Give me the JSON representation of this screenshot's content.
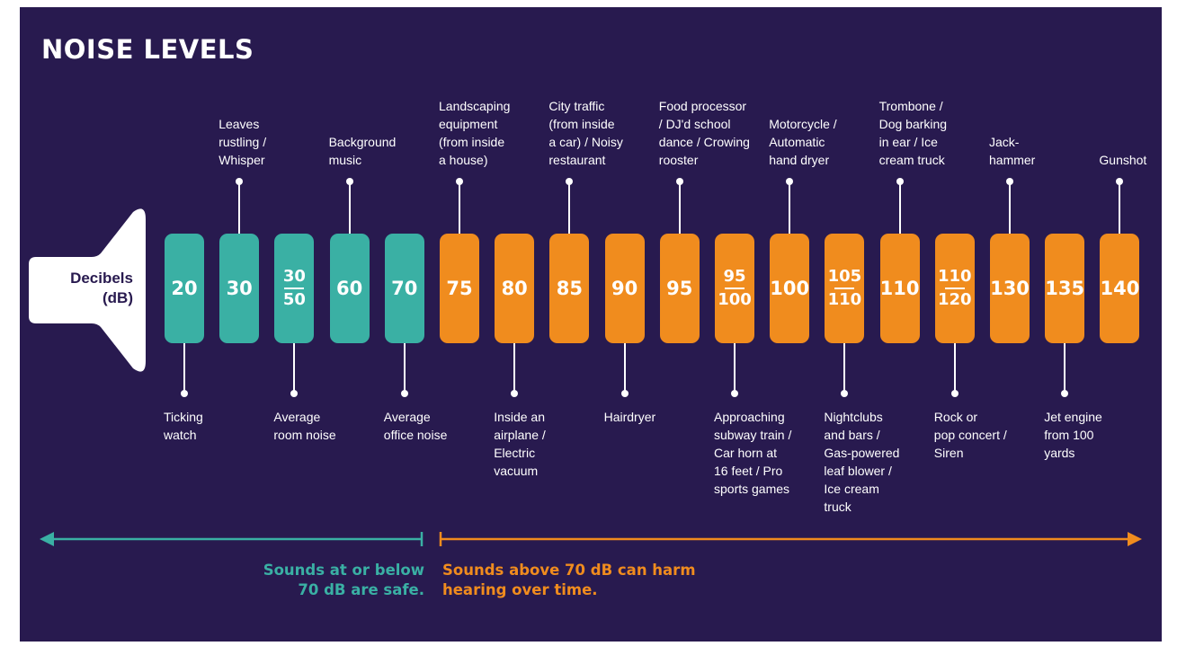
{
  "title": "NOISE LEVELS",
  "speaker": {
    "line1": "Decibels",
    "line2": "(dB)"
  },
  "colors": {
    "background": "#281a4f",
    "safe": "#3ab0a4",
    "harm": "#f08c1e",
    "text": "#ffffff"
  },
  "levels": [
    {
      "value": "20",
      "zone": "safe",
      "label_pos": "below",
      "label": "Ticking\nwatch"
    },
    {
      "value": "30",
      "zone": "safe",
      "label_pos": "above",
      "label": "Leaves\nrustling /\nWhisper"
    },
    {
      "value": "30",
      "value2": "50",
      "zone": "safe",
      "label_pos": "below",
      "label": "Average\nroom noise"
    },
    {
      "value": "60",
      "zone": "safe",
      "label_pos": "above",
      "label": "Background\nmusic"
    },
    {
      "value": "70",
      "zone": "safe",
      "label_pos": "below",
      "label": "Average\noffice noise"
    },
    {
      "value": "75",
      "zone": "harm",
      "label_pos": "above",
      "label": "Landscaping\nequipment\n(from inside\na house)"
    },
    {
      "value": "80",
      "zone": "harm",
      "label_pos": "below",
      "label": "Inside an\nairplane /\nElectric\nvacuum"
    },
    {
      "value": "85",
      "zone": "harm",
      "label_pos": "above",
      "label": "City traffic\n(from inside\na car) / Noisy\nrestaurant"
    },
    {
      "value": "90",
      "zone": "harm",
      "label_pos": "below",
      "label": "Hairdryer"
    },
    {
      "value": "95",
      "zone": "harm",
      "label_pos": "above",
      "label": "Food processor\n/ DJ'd school\ndance / Crowing\nrooster"
    },
    {
      "value": "95",
      "value2": "100",
      "zone": "harm",
      "label_pos": "below",
      "label": "Approaching\nsubway train /\nCar horn at\n16 feet / Pro\nsports games"
    },
    {
      "value": "100",
      "zone": "harm",
      "label_pos": "above",
      "label": "Motorcycle /\nAutomatic\nhand dryer"
    },
    {
      "value": "105",
      "value2": "110",
      "zone": "harm",
      "label_pos": "below",
      "label": "Nightclubs\nand bars /\nGas-powered\nleaf blower /\nIce cream\ntruck"
    },
    {
      "value": "110",
      "zone": "harm",
      "label_pos": "above",
      "label": "Trombone /\nDog barking\nin ear / Ice\ncream truck"
    },
    {
      "value": "110",
      "value2": "120",
      "zone": "harm",
      "label_pos": "below",
      "label": "Rock or\npop concert /\nSiren"
    },
    {
      "value": "130",
      "zone": "harm",
      "label_pos": "above",
      "label": "Jack-\nhammer"
    },
    {
      "value": "135",
      "zone": "harm",
      "label_pos": "below",
      "label": "Jet engine\nfrom 100\nyards"
    },
    {
      "value": "140",
      "zone": "harm",
      "label_pos": "above",
      "label": "Gunshot"
    }
  ],
  "captions": {
    "safe": "Sounds at or below\n70 dB are safe.",
    "harm": "Sounds above 70 dB can harm\nhearing over time."
  }
}
